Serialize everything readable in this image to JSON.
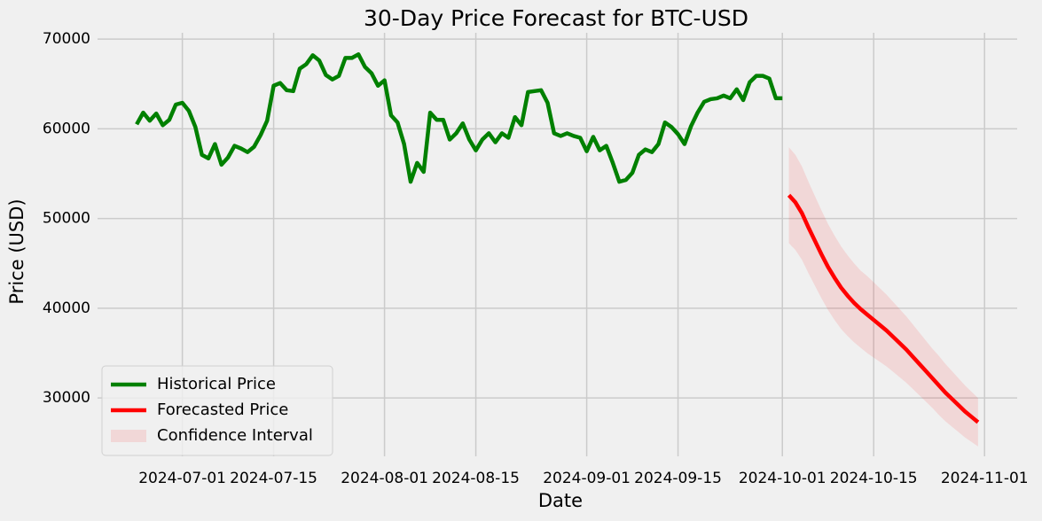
{
  "chart_data": {
    "type": "line",
    "title": "30-Day Price Forecast for BTC-USD",
    "x_label": "Date",
    "y_label": "Price (USD)",
    "xlim": [
      "2024-06-18",
      "2024-11-06"
    ],
    "xticks": [
      "2024-07-01",
      "2024-07-15",
      "2024-08-01",
      "2024-08-15",
      "2024-09-01",
      "2024-09-15",
      "2024-10-01",
      "2024-10-15",
      "2024-11-01"
    ],
    "ylim": [
      23500,
      70700
    ],
    "yticks": [
      30000,
      40000,
      50000,
      60000,
      70000
    ],
    "grid": true,
    "legend": "lower left",
    "series": [
      {
        "name": "Historical Price",
        "color": "#008000",
        "x": [
          "2024-06-24",
          "2024-06-25",
          "2024-06-26",
          "2024-06-27",
          "2024-06-28",
          "2024-06-29",
          "2024-06-30",
          "2024-07-01",
          "2024-07-02",
          "2024-07-03",
          "2024-07-04",
          "2024-07-05",
          "2024-07-06",
          "2024-07-07",
          "2024-07-08",
          "2024-07-09",
          "2024-07-10",
          "2024-07-11",
          "2024-07-12",
          "2024-07-13",
          "2024-07-14",
          "2024-07-15",
          "2024-07-16",
          "2024-07-17",
          "2024-07-18",
          "2024-07-19",
          "2024-07-20",
          "2024-07-21",
          "2024-07-22",
          "2024-07-23",
          "2024-07-24",
          "2024-07-25",
          "2024-07-26",
          "2024-07-27",
          "2024-07-28",
          "2024-07-29",
          "2024-07-30",
          "2024-07-31",
          "2024-08-01",
          "2024-08-02",
          "2024-08-03",
          "2024-08-04",
          "2024-08-05",
          "2024-08-06",
          "2024-08-07",
          "2024-08-08",
          "2024-08-09",
          "2024-08-10",
          "2024-08-11",
          "2024-08-12",
          "2024-08-13",
          "2024-08-14",
          "2024-08-15",
          "2024-08-16",
          "2024-08-17",
          "2024-08-18",
          "2024-08-19",
          "2024-08-20",
          "2024-08-21",
          "2024-08-22",
          "2024-08-23",
          "2024-08-24",
          "2024-08-25",
          "2024-08-26",
          "2024-08-27",
          "2024-08-28",
          "2024-08-29",
          "2024-08-30",
          "2024-08-31",
          "2024-09-01",
          "2024-09-02",
          "2024-09-03",
          "2024-09-04",
          "2024-09-05",
          "2024-09-06",
          "2024-09-07",
          "2024-09-08",
          "2024-09-09",
          "2024-09-10",
          "2024-09-11",
          "2024-09-12",
          "2024-09-13",
          "2024-09-14",
          "2024-09-15",
          "2024-09-16",
          "2024-09-17",
          "2024-09-18",
          "2024-09-19",
          "2024-09-20",
          "2024-09-21",
          "2024-09-22",
          "2024-09-23",
          "2024-09-24",
          "2024-09-25",
          "2024-09-26",
          "2024-09-27",
          "2024-09-28",
          "2024-09-29",
          "2024-09-30",
          "2024-10-01"
        ],
        "values": [
          60500,
          61800,
          60900,
          61700,
          60400,
          61000,
          62700,
          62900,
          62000,
          60200,
          57100,
          56700,
          58300,
          56000,
          56800,
          58100,
          57800,
          57400,
          58000,
          59300,
          60900,
          64800,
          65100,
          64300,
          64200,
          66700,
          67200,
          68200,
          67600,
          66000,
          65500,
          65900,
          67900,
          67900,
          68300,
          66900,
          66200,
          64800,
          65400,
          61500,
          60700,
          58300,
          54100,
          56200,
          55200,
          61800,
          61000,
          61000,
          58800,
          59500,
          60600,
          58800,
          57600,
          58800,
          59500,
          58500,
          59500,
          59000,
          61300,
          60400,
          64100,
          64200,
          64300,
          62900,
          59500,
          59200,
          59500,
          59200,
          59000,
          57500,
          59100,
          57600,
          58100,
          56200,
          54100,
          54300,
          55100,
          57100,
          57700,
          57400,
          58300,
          60700,
          60200,
          59400,
          58300,
          60300,
          61800,
          63000,
          63300,
          63400,
          63700,
          63400,
          64400,
          63200,
          65200,
          65900,
          65900,
          65600,
          63400,
          63400
        ]
      },
      {
        "name": "Forecasted Price",
        "color": "#ff0000",
        "x": [
          "2024-10-02",
          "2024-10-03",
          "2024-10-04",
          "2024-10-05",
          "2024-10-06",
          "2024-10-07",
          "2024-10-08",
          "2024-10-09",
          "2024-10-10",
          "2024-10-11",
          "2024-10-12",
          "2024-10-13",
          "2024-10-14",
          "2024-10-15",
          "2024-10-16",
          "2024-10-17",
          "2024-10-18",
          "2024-10-19",
          "2024-10-20",
          "2024-10-21",
          "2024-10-22",
          "2024-10-23",
          "2024-10-24",
          "2024-10-25",
          "2024-10-26",
          "2024-10-27",
          "2024-10-28",
          "2024-10-29",
          "2024-10-30",
          "2024-10-31"
        ],
        "values": [
          52600,
          51800,
          50600,
          49000,
          47500,
          46000,
          44600,
          43400,
          42300,
          41400,
          40600,
          39900,
          39300,
          38700,
          38100,
          37500,
          36800,
          36100,
          35400,
          34600,
          33800,
          33000,
          32200,
          31400,
          30600,
          29900,
          29200,
          28500,
          27900,
          27300
        ]
      }
    ],
    "band": {
      "name": "Confidence Interval",
      "color": "#ff0000",
      "x": [
        "2024-10-02",
        "2024-10-03",
        "2024-10-04",
        "2024-10-05",
        "2024-10-06",
        "2024-10-07",
        "2024-10-08",
        "2024-10-09",
        "2024-10-10",
        "2024-10-11",
        "2024-10-12",
        "2024-10-13",
        "2024-10-14",
        "2024-10-15",
        "2024-10-16",
        "2024-10-17",
        "2024-10-18",
        "2024-10-19",
        "2024-10-20",
        "2024-10-21",
        "2024-10-22",
        "2024-10-23",
        "2024-10-24",
        "2024-10-25",
        "2024-10-26",
        "2024-10-27",
        "2024-10-28",
        "2024-10-29",
        "2024-10-30",
        "2024-10-31"
      ],
      "upper": [
        57950,
        57100,
        55800,
        54100,
        52500,
        50900,
        49400,
        48100,
        46900,
        45900,
        45000,
        44200,
        43600,
        42900,
        42200,
        41500,
        40700,
        39900,
        39100,
        38200,
        37300,
        36400,
        35500,
        34700,
        33800,
        33000,
        32200,
        31400,
        30700,
        30000
      ],
      "lower": [
        47250,
        46500,
        45400,
        43900,
        42500,
        41100,
        39800,
        38700,
        37700,
        36900,
        36200,
        35600,
        35000,
        34500,
        34000,
        33500,
        32900,
        32300,
        31700,
        31000,
        30300,
        29600,
        28900,
        28100,
        27400,
        26800,
        26200,
        25600,
        25100,
        24600
      ]
    }
  }
}
